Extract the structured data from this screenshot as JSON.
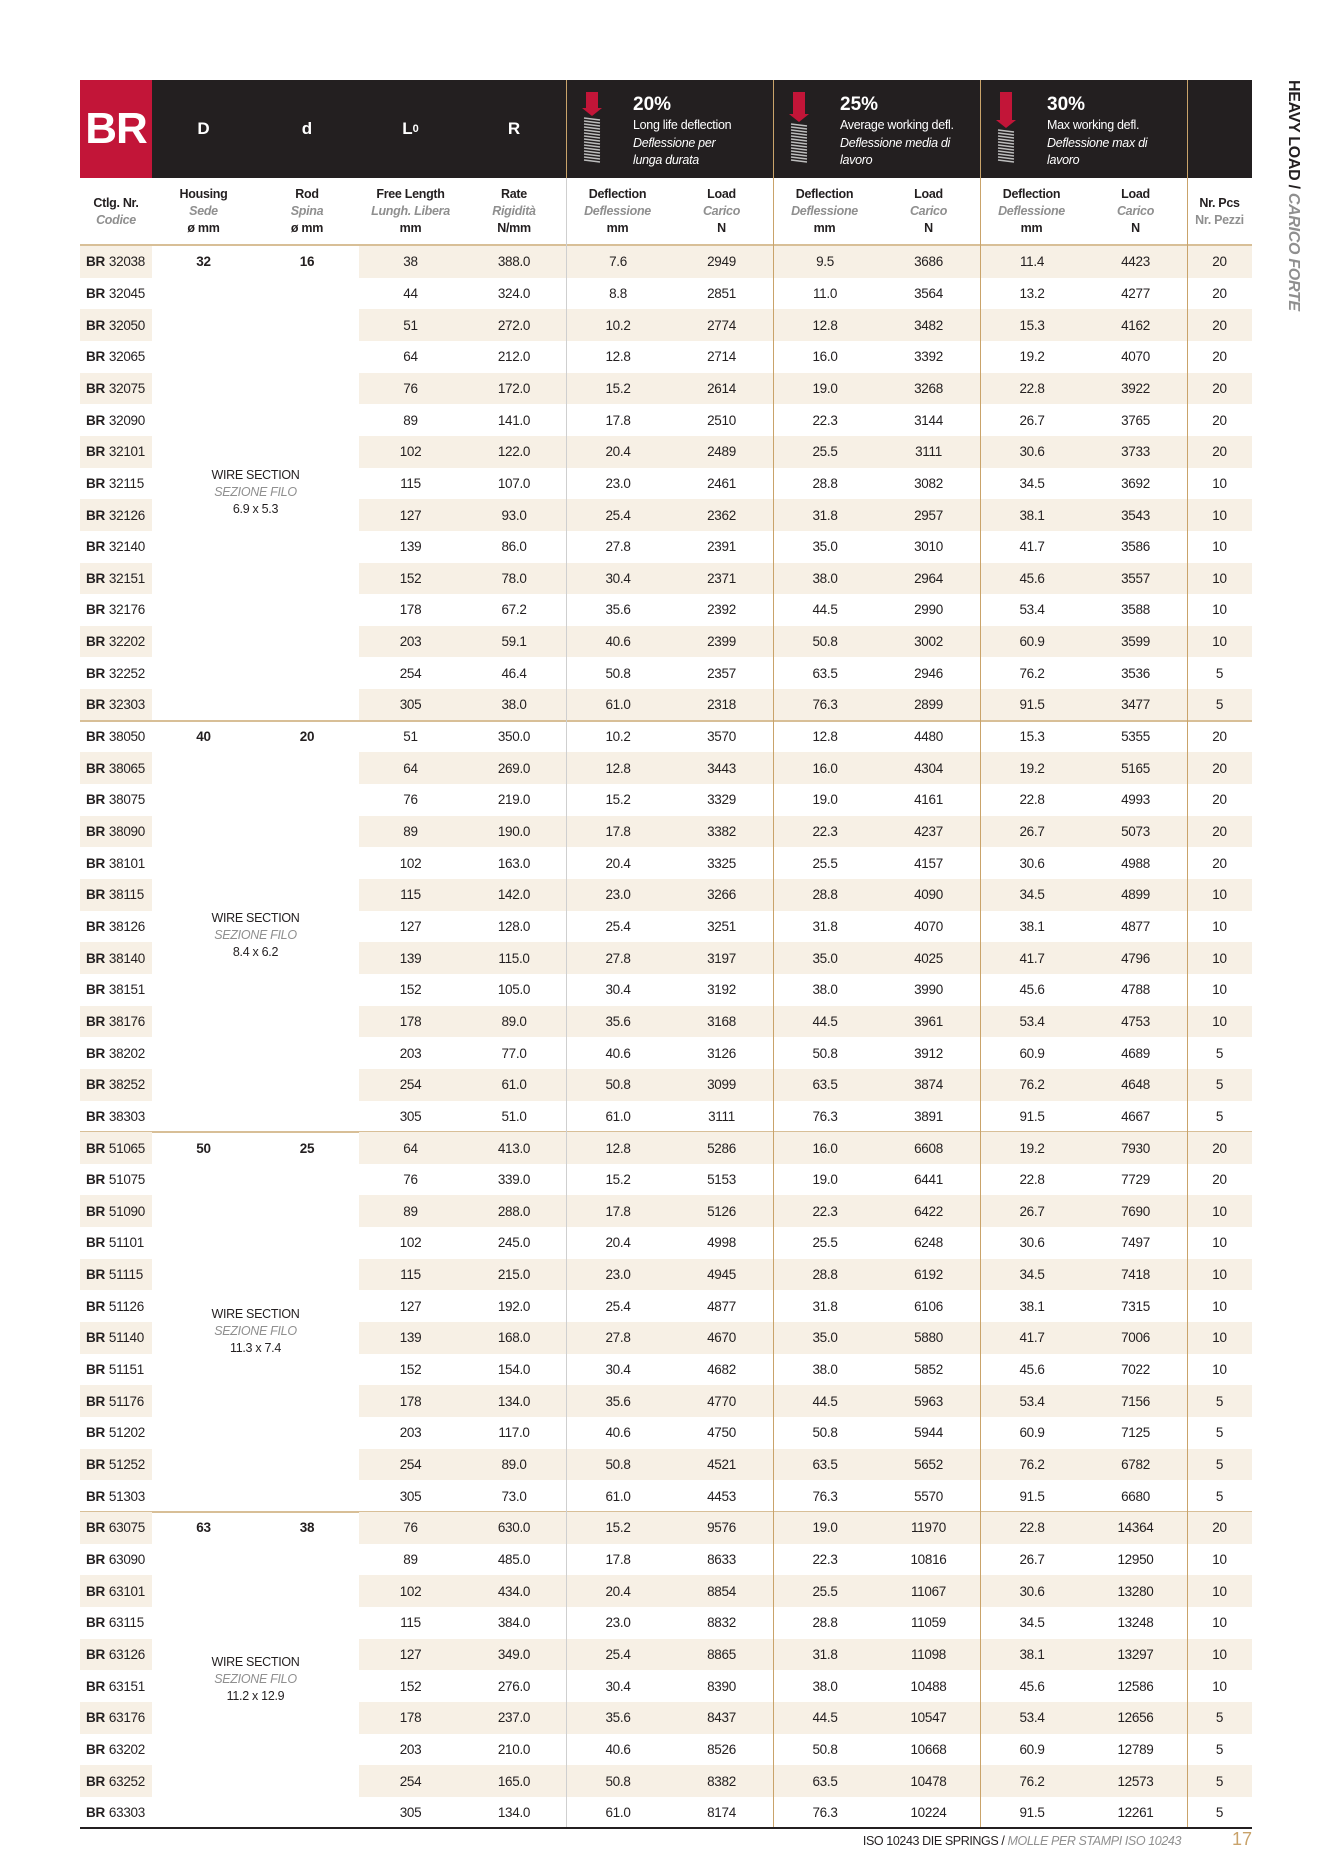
{
  "header": {
    "series": "BR",
    "col_D": "D",
    "col_d": "d",
    "col_L": "L",
    "col_L_sub": "0",
    "col_R": "R",
    "deflections": [
      {
        "pct": "20%",
        "en": "Long life deflection",
        "it": "Deflessione per lunga durata",
        "icon": "compressed-spring-icon"
      },
      {
        "pct": "25%",
        "en": "Average working defl.",
        "it": "Deflessione media di lavoro",
        "icon": "compressed-spring-icon"
      },
      {
        "pct": "30%",
        "en": "Max working defl.",
        "it": "Deflessione max di lavoro",
        "icon": "compressed-spring-icon"
      }
    ]
  },
  "subheader": {
    "code": {
      "en": "Ctlg. Nr.",
      "it": "Codice"
    },
    "housing": {
      "en": "Housing",
      "it": "Sede",
      "unit": "ø mm"
    },
    "rod": {
      "en": "Rod",
      "it": "Spina",
      "unit": "ø mm"
    },
    "free_length": {
      "en": "Free Length",
      "it": "Lungh. Libera",
      "unit": "mm"
    },
    "rate": {
      "en": "Rate",
      "it": "Rigidità",
      "unit": "N/mm"
    },
    "deflection": {
      "en": "Deflection",
      "it": "Deflessione",
      "unit": "mm"
    },
    "load": {
      "en": "Load",
      "it": "Carico",
      "unit": "N"
    },
    "pcs": {
      "en": "Nr. Pcs",
      "it": "Nr. Pezzi"
    }
  },
  "code_prefix": "BR",
  "wire_label": {
    "en": "WIRE SECTION",
    "it": "SEZIONE FILO"
  },
  "groups": [
    {
      "D": "32",
      "d": "16",
      "wire": "6.9 x 5.3",
      "rows": [
        [
          "32038",
          "38",
          "388.0",
          "7.6",
          "2949",
          "9.5",
          "3686",
          "11.4",
          "4423",
          "20"
        ],
        [
          "32045",
          "44",
          "324.0",
          "8.8",
          "2851",
          "11.0",
          "3564",
          "13.2",
          "4277",
          "20"
        ],
        [
          "32050",
          "51",
          "272.0",
          "10.2",
          "2774",
          "12.8",
          "3482",
          "15.3",
          "4162",
          "20"
        ],
        [
          "32065",
          "64",
          "212.0",
          "12.8",
          "2714",
          "16.0",
          "3392",
          "19.2",
          "4070",
          "20"
        ],
        [
          "32075",
          "76",
          "172.0",
          "15.2",
          "2614",
          "19.0",
          "3268",
          "22.8",
          "3922",
          "20"
        ],
        [
          "32090",
          "89",
          "141.0",
          "17.8",
          "2510",
          "22.3",
          "3144",
          "26.7",
          "3765",
          "20"
        ],
        [
          "32101",
          "102",
          "122.0",
          "20.4",
          "2489",
          "25.5",
          "3111",
          "30.6",
          "3733",
          "20"
        ],
        [
          "32115",
          "115",
          "107.0",
          "23.0",
          "2461",
          "28.8",
          "3082",
          "34.5",
          "3692",
          "10"
        ],
        [
          "32126",
          "127",
          "93.0",
          "25.4",
          "2362",
          "31.8",
          "2957",
          "38.1",
          "3543",
          "10"
        ],
        [
          "32140",
          "139",
          "86.0",
          "27.8",
          "2391",
          "35.0",
          "3010",
          "41.7",
          "3586",
          "10"
        ],
        [
          "32151",
          "152",
          "78.0",
          "30.4",
          "2371",
          "38.0",
          "2964",
          "45.6",
          "3557",
          "10"
        ],
        [
          "32176",
          "178",
          "67.2",
          "35.6",
          "2392",
          "44.5",
          "2990",
          "53.4",
          "3588",
          "10"
        ],
        [
          "32202",
          "203",
          "59.1",
          "40.6",
          "2399",
          "50.8",
          "3002",
          "60.9",
          "3599",
          "10"
        ],
        [
          "32252",
          "254",
          "46.4",
          "50.8",
          "2357",
          "63.5",
          "2946",
          "76.2",
          "3536",
          "5"
        ],
        [
          "32303",
          "305",
          "38.0",
          "61.0",
          "2318",
          "76.3",
          "2899",
          "91.5",
          "3477",
          "5"
        ]
      ]
    },
    {
      "D": "40",
      "d": "20",
      "wire": "8.4 x 6.2",
      "rows": [
        [
          "38050",
          "51",
          "350.0",
          "10.2",
          "3570",
          "12.8",
          "4480",
          "15.3",
          "5355",
          "20"
        ],
        [
          "38065",
          "64",
          "269.0",
          "12.8",
          "3443",
          "16.0",
          "4304",
          "19.2",
          "5165",
          "20"
        ],
        [
          "38075",
          "76",
          "219.0",
          "15.2",
          "3329",
          "19.0",
          "4161",
          "22.8",
          "4993",
          "20"
        ],
        [
          "38090",
          "89",
          "190.0",
          "17.8",
          "3382",
          "22.3",
          "4237",
          "26.7",
          "5073",
          "20"
        ],
        [
          "38101",
          "102",
          "163.0",
          "20.4",
          "3325",
          "25.5",
          "4157",
          "30.6",
          "4988",
          "20"
        ],
        [
          "38115",
          "115",
          "142.0",
          "23.0",
          "3266",
          "28.8",
          "4090",
          "34.5",
          "4899",
          "10"
        ],
        [
          "38126",
          "127",
          "128.0",
          "25.4",
          "3251",
          "31.8",
          "4070",
          "38.1",
          "4877",
          "10"
        ],
        [
          "38140",
          "139",
          "115.0",
          "27.8",
          "3197",
          "35.0",
          "4025",
          "41.7",
          "4796",
          "10"
        ],
        [
          "38151",
          "152",
          "105.0",
          "30.4",
          "3192",
          "38.0",
          "3990",
          "45.6",
          "4788",
          "10"
        ],
        [
          "38176",
          "178",
          "89.0",
          "35.6",
          "3168",
          "44.5",
          "3961",
          "53.4",
          "4753",
          "10"
        ],
        [
          "38202",
          "203",
          "77.0",
          "40.6",
          "3126",
          "50.8",
          "3912",
          "60.9",
          "4689",
          "5"
        ],
        [
          "38252",
          "254",
          "61.0",
          "50.8",
          "3099",
          "63.5",
          "3874",
          "76.2",
          "4648",
          "5"
        ],
        [
          "38303",
          "305",
          "51.0",
          "61.0",
          "3111",
          "76.3",
          "3891",
          "91.5",
          "4667",
          "5"
        ]
      ]
    },
    {
      "D": "50",
      "d": "25",
      "wire": "11.3 x 7.4",
      "rows": [
        [
          "51065",
          "64",
          "413.0",
          "12.8",
          "5286",
          "16.0",
          "6608",
          "19.2",
          "7930",
          "20"
        ],
        [
          "51075",
          "76",
          "339.0",
          "15.2",
          "5153",
          "19.0",
          "6441",
          "22.8",
          "7729",
          "20"
        ],
        [
          "51090",
          "89",
          "288.0",
          "17.8",
          "5126",
          "22.3",
          "6422",
          "26.7",
          "7690",
          "10"
        ],
        [
          "51101",
          "102",
          "245.0",
          "20.4",
          "4998",
          "25.5",
          "6248",
          "30.6",
          "7497",
          "10"
        ],
        [
          "51115",
          "115",
          "215.0",
          "23.0",
          "4945",
          "28.8",
          "6192",
          "34.5",
          "7418",
          "10"
        ],
        [
          "51126",
          "127",
          "192.0",
          "25.4",
          "4877",
          "31.8",
          "6106",
          "38.1",
          "7315",
          "10"
        ],
        [
          "51140",
          "139",
          "168.0",
          "27.8",
          "4670",
          "35.0",
          "5880",
          "41.7",
          "7006",
          "10"
        ],
        [
          "51151",
          "152",
          "154.0",
          "30.4",
          "4682",
          "38.0",
          "5852",
          "45.6",
          "7022",
          "10"
        ],
        [
          "51176",
          "178",
          "134.0",
          "35.6",
          "4770",
          "44.5",
          "5963",
          "53.4",
          "7156",
          "5"
        ],
        [
          "51202",
          "203",
          "117.0",
          "40.6",
          "4750",
          "50.8",
          "5944",
          "60.9",
          "7125",
          "5"
        ],
        [
          "51252",
          "254",
          "89.0",
          "50.8",
          "4521",
          "63.5",
          "5652",
          "76.2",
          "6782",
          "5"
        ],
        [
          "51303",
          "305",
          "73.0",
          "61.0",
          "4453",
          "76.3",
          "5570",
          "91.5",
          "6680",
          "5"
        ]
      ]
    },
    {
      "D": "63",
      "d": "38",
      "wire": "11.2 x 12.9",
      "rows": [
        [
          "63075",
          "76",
          "630.0",
          "15.2",
          "9576",
          "19.0",
          "11970",
          "22.8",
          "14364",
          "20"
        ],
        [
          "63090",
          "89",
          "485.0",
          "17.8",
          "8633",
          "22.3",
          "10816",
          "26.7",
          "12950",
          "10"
        ],
        [
          "63101",
          "102",
          "434.0",
          "20.4",
          "8854",
          "25.5",
          "11067",
          "30.6",
          "13280",
          "10"
        ],
        [
          "63115",
          "115",
          "384.0",
          "23.0",
          "8832",
          "28.8",
          "11059",
          "34.5",
          "13248",
          "10"
        ],
        [
          "63126",
          "127",
          "349.0",
          "25.4",
          "8865",
          "31.8",
          "11098",
          "38.1",
          "13297",
          "10"
        ],
        [
          "63151",
          "152",
          "276.0",
          "30.4",
          "8390",
          "38.0",
          "10488",
          "45.6",
          "12586",
          "10"
        ],
        [
          "63176",
          "178",
          "237.0",
          "35.6",
          "8437",
          "44.5",
          "10547",
          "53.4",
          "12656",
          "5"
        ],
        [
          "63202",
          "203",
          "210.0",
          "40.6",
          "8526",
          "50.8",
          "10668",
          "60.9",
          "12789",
          "5"
        ],
        [
          "63252",
          "254",
          "165.0",
          "50.8",
          "8382",
          "63.5",
          "10478",
          "76.2",
          "12573",
          "5"
        ],
        [
          "63303",
          "305",
          "134.0",
          "61.0",
          "8174",
          "76.3",
          "10224",
          "91.5",
          "12261",
          "5"
        ]
      ]
    }
  ],
  "side_title": {
    "en": "HEAVY LOAD",
    "sep": " / ",
    "it": "CARICO FORTE"
  },
  "footer": {
    "en": "ISO 10243 DIE SPRINGS",
    "sep": " / ",
    "it": "MOLLE PER STAMPI ISO 10243",
    "page": "17"
  },
  "colors": {
    "brand_red": "#c21538",
    "header_dark": "#231f20",
    "gold": "#c9a36a",
    "stripe": "#f7f0e5"
  }
}
